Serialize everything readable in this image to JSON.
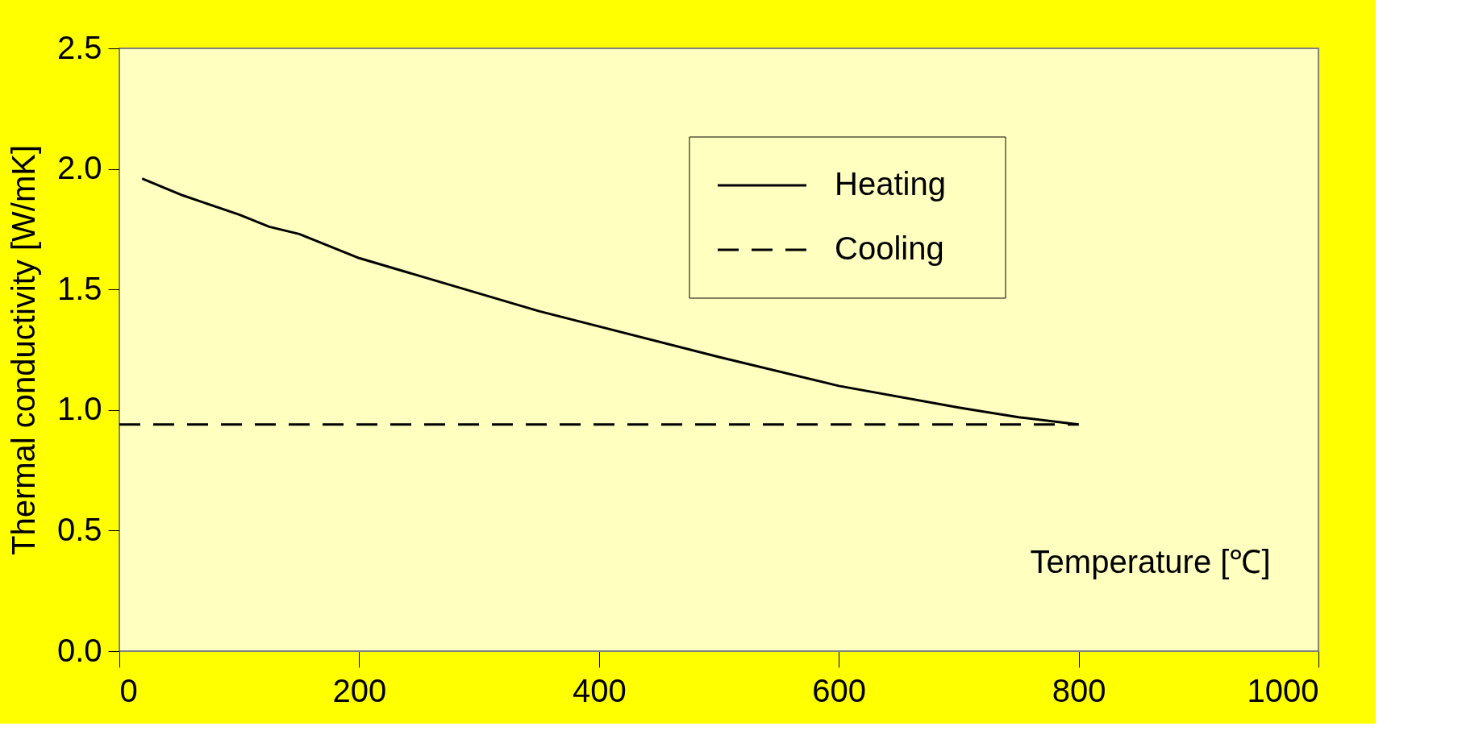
{
  "chart_data": {
    "type": "line",
    "xlabel": "Temperature [℃]",
    "ylabel": "Thermal conductivity [W/mK]",
    "xlim": [
      0,
      1000
    ],
    "xticks": [
      0,
      200,
      400,
      600,
      800,
      {
        "value": 1000,
        "label": "1000"
      }
    ],
    "ylim": [
      0,
      2.5
    ],
    "yticks": [
      {
        "value": 0,
        "label": "0.0"
      },
      {
        "value": 0.5,
        "label": "0.5"
      },
      {
        "value": 1,
        "label": "1.0"
      },
      {
        "value": 1.5,
        "label": "1.5"
      },
      {
        "value": 2,
        "label": "2.0"
      },
      {
        "value": 2.5,
        "label": "2.5"
      }
    ],
    "grid": false,
    "legend": "top right",
    "marker": "none",
    "series": [
      {
        "name": "Heating",
        "color": "#000000",
        "line_style": "solid",
        "x": [
          19,
          53,
          100,
          125,
          150,
          200,
          350,
          500,
          600,
          700,
          750,
          800
        ],
        "values": [
          1.96,
          1.89,
          1.81,
          1.76,
          1.73,
          1.63,
          1.41,
          1.22,
          1.1,
          1.01,
          0.97,
          0.94
        ]
      },
      {
        "name": "Cooling",
        "color": "#000000",
        "line_style": "dashed",
        "x": [
          0,
          800
        ],
        "values": [
          0.94,
          0.94
        ]
      }
    ]
  }
}
